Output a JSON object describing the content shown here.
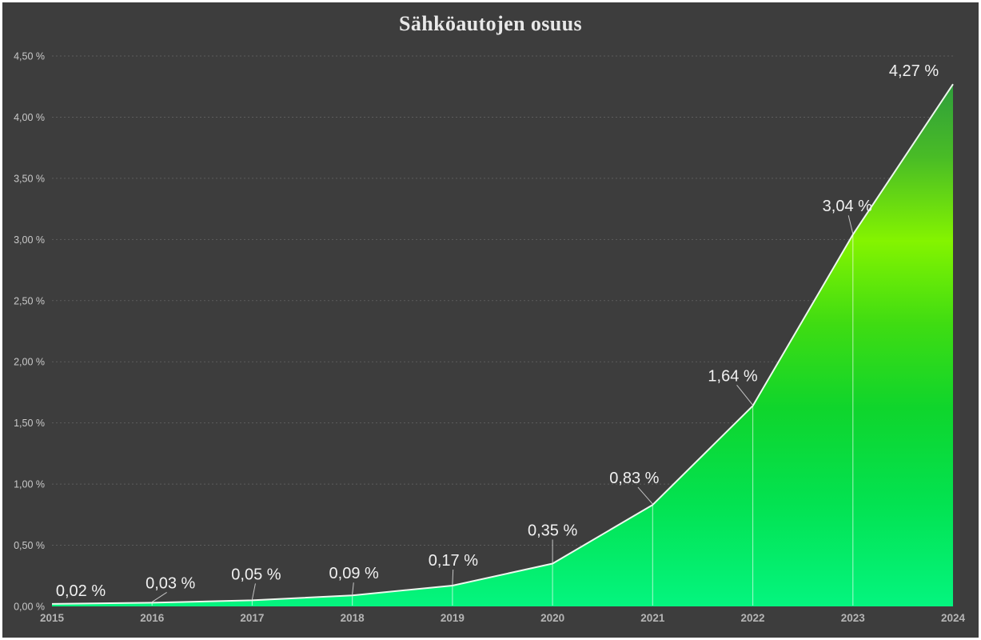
{
  "chart_data": {
    "type": "area",
    "title": "Sähköautojen osuus",
    "categories": [
      "2015",
      "2016",
      "2017",
      "2018",
      "2019",
      "2020",
      "2021",
      "2022",
      "2023",
      "2024"
    ],
    "values": [
      0.02,
      0.03,
      0.05,
      0.09,
      0.17,
      0.35,
      0.83,
      1.64,
      3.04,
      4.27
    ],
    "data_labels": [
      "0,02 %",
      "0,03 %",
      "0,05 %",
      "0,09 %",
      "0,17 %",
      "0,35 %",
      "0,83 %",
      "1,64 %",
      "3,04 %",
      "4,27 %"
    ],
    "xlabel": "",
    "ylabel": "",
    "ylim": [
      0,
      4.5
    ],
    "y_tick_step": 0.5,
    "y_tick_labels": [
      "0,00 %",
      "0,50 %",
      "1,00 %",
      "1,50 %",
      "2,00 %",
      "2,50 %",
      "3,00 %",
      "3,50 %",
      "4,00 %",
      "4,50 %"
    ],
    "grid": true,
    "legend": "none",
    "styles": {
      "background": "#3D3D3D",
      "frame_border": "#FFFFFF",
      "title_color": "#E8E8E8",
      "data_label_color": "#F1F1F1",
      "y_tick_color": "#C9C9C9",
      "x_tick_color": "#B5B5B5",
      "gridline_color": "rgba(255,255,255,0.17)",
      "line_color": "#EDF7EE",
      "drop_line_color": "rgba(255,255,255,0.55)",
      "leader_line_color": "rgba(220,220,220,0.85)",
      "area_gradient": [
        {
          "offset": "0%",
          "color": "#2F9E3B"
        },
        {
          "offset": "14%",
          "color": "#49BC26"
        },
        {
          "offset": "30%",
          "color": "#84F400"
        },
        {
          "offset": "46%",
          "color": "#3FDC12"
        },
        {
          "offset": "62%",
          "color": "#0FD52C"
        },
        {
          "offset": "80%",
          "color": "#03E250"
        },
        {
          "offset": "100%",
          "color": "#04F57F"
        }
      ]
    }
  }
}
